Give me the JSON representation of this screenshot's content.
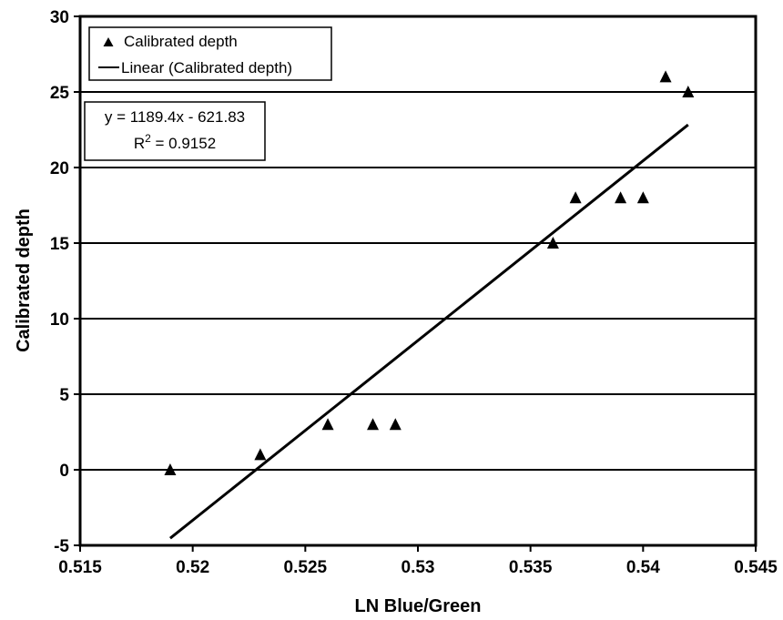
{
  "chart_data": {
    "type": "scatter",
    "xlabel": "LN Blue/Green",
    "ylabel": "Calibrated depth",
    "xlim": [
      0.515,
      0.545
    ],
    "ylim": [
      -5,
      30
    ],
    "xticks": [
      "0.515",
      "0.52",
      "0.525",
      "0.53",
      "0.535",
      "0.54",
      "0.545"
    ],
    "yticks": [
      "-5",
      "0",
      "5",
      "10",
      "15",
      "20",
      "25",
      "30"
    ],
    "grid": "horizontal",
    "legend_position": "top-left",
    "series": [
      {
        "name": "Calibrated depth",
        "marker": "triangle",
        "x": [
          0.519,
          0.523,
          0.526,
          0.528,
          0.529,
          0.536,
          0.537,
          0.539,
          0.54,
          0.541,
          0.542
        ],
        "y": [
          0,
          1,
          3,
          3,
          3,
          15,
          18,
          18,
          18,
          26,
          25
        ]
      }
    ],
    "trendline": {
      "name": "Linear (Calibrated depth)",
      "slope": 1189.4,
      "intercept": -621.83,
      "x_range": [
        0.519,
        0.542
      ]
    },
    "annotations": {
      "equation": "y = 1189.4x - 621.83",
      "r2_prefix": "R",
      "r2_sup": "2",
      "r2_value": " = 0.9152"
    }
  }
}
